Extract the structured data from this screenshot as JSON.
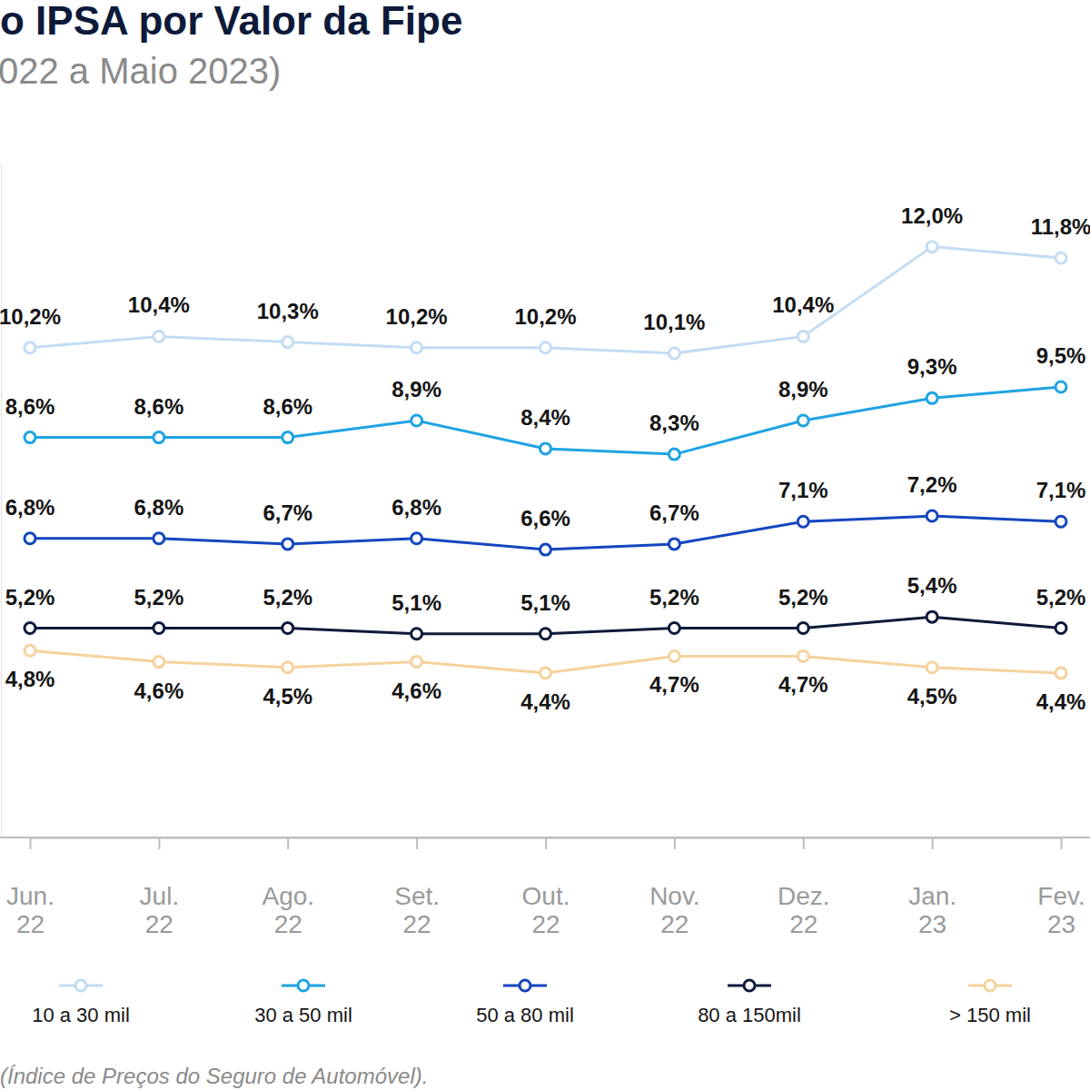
{
  "chart_data": {
    "type": "line",
    "title": "o IPSA por Valor da Fipe",
    "subtitle": "022 a Maio 2023)",
    "footnote": "(Índice de Preços do Seguro de Automóvel).",
    "categories": [
      "Jun. 22",
      "Jul. 22",
      "Ago. 22",
      "Set. 22",
      "Out. 22",
      "Nov. 22",
      "Dez. 22",
      "Jan. 23",
      "Fev. 23"
    ],
    "ylim": [
      1.5,
      13.5
    ],
    "yticks": [],
    "tick_labels": "x",
    "data_labels": true,
    "legend": "bottom",
    "grid": false,
    "series": [
      {
        "name": "10 a 30 mil",
        "color": "#c3dcf4",
        "marker": "circle",
        "values": [
          10.2,
          10.4,
          10.3,
          10.2,
          10.2,
          10.1,
          10.4,
          12.0,
          11.8
        ],
        "value_labels": [
          "10,2%",
          "10,4%",
          "10,3%",
          "10,2%",
          "10,2%",
          "10,1%",
          "10,4%",
          "12,0%",
          "11,8%"
        ]
      },
      {
        "name": "30 a 50 mil",
        "color": "#1fa3e4",
        "marker": "circle",
        "values": [
          8.6,
          8.6,
          8.6,
          8.9,
          8.4,
          8.3,
          8.9,
          9.3,
          9.5
        ],
        "value_labels": [
          "8,6%",
          "8,6%",
          "8,6%",
          "8,9%",
          "8,4%",
          "8,3%",
          "8,9%",
          "9,3%",
          "9,5%"
        ]
      },
      {
        "name": "50 a 80 mil",
        "color": "#1546c0",
        "marker": "circle",
        "values": [
          6.8,
          6.8,
          6.7,
          6.8,
          6.6,
          6.7,
          7.1,
          7.2,
          7.1
        ],
        "value_labels": [
          "6,8%",
          "6,8%",
          "6,7%",
          "6,8%",
          "6,6%",
          "6,7%",
          "7,1%",
          "7,2%",
          "7,1%"
        ]
      },
      {
        "name": "80 a 150mil",
        "color": "#0d1a3a",
        "marker": "circle",
        "values": [
          5.2,
          5.2,
          5.2,
          5.1,
          5.1,
          5.2,
          5.2,
          5.4,
          5.2
        ],
        "value_labels": [
          "5,2%",
          "5,2%",
          "5,2%",
          "5,1%",
          "5,1%",
          "5,2%",
          "5,2%",
          "5,4%",
          "5,2%"
        ]
      },
      {
        "name": "> 150 mil",
        "color": "#f6d29c",
        "marker": "circle",
        "values": [
          4.8,
          4.6,
          4.5,
          4.6,
          4.4,
          4.7,
          4.7,
          4.5,
          4.4
        ],
        "value_labels": [
          "4,8%",
          "4,6%",
          "4,5%",
          "4,6%",
          "4,4%",
          "4,7%",
          "4,7%",
          "4,5%",
          "4,4%"
        ]
      }
    ]
  }
}
